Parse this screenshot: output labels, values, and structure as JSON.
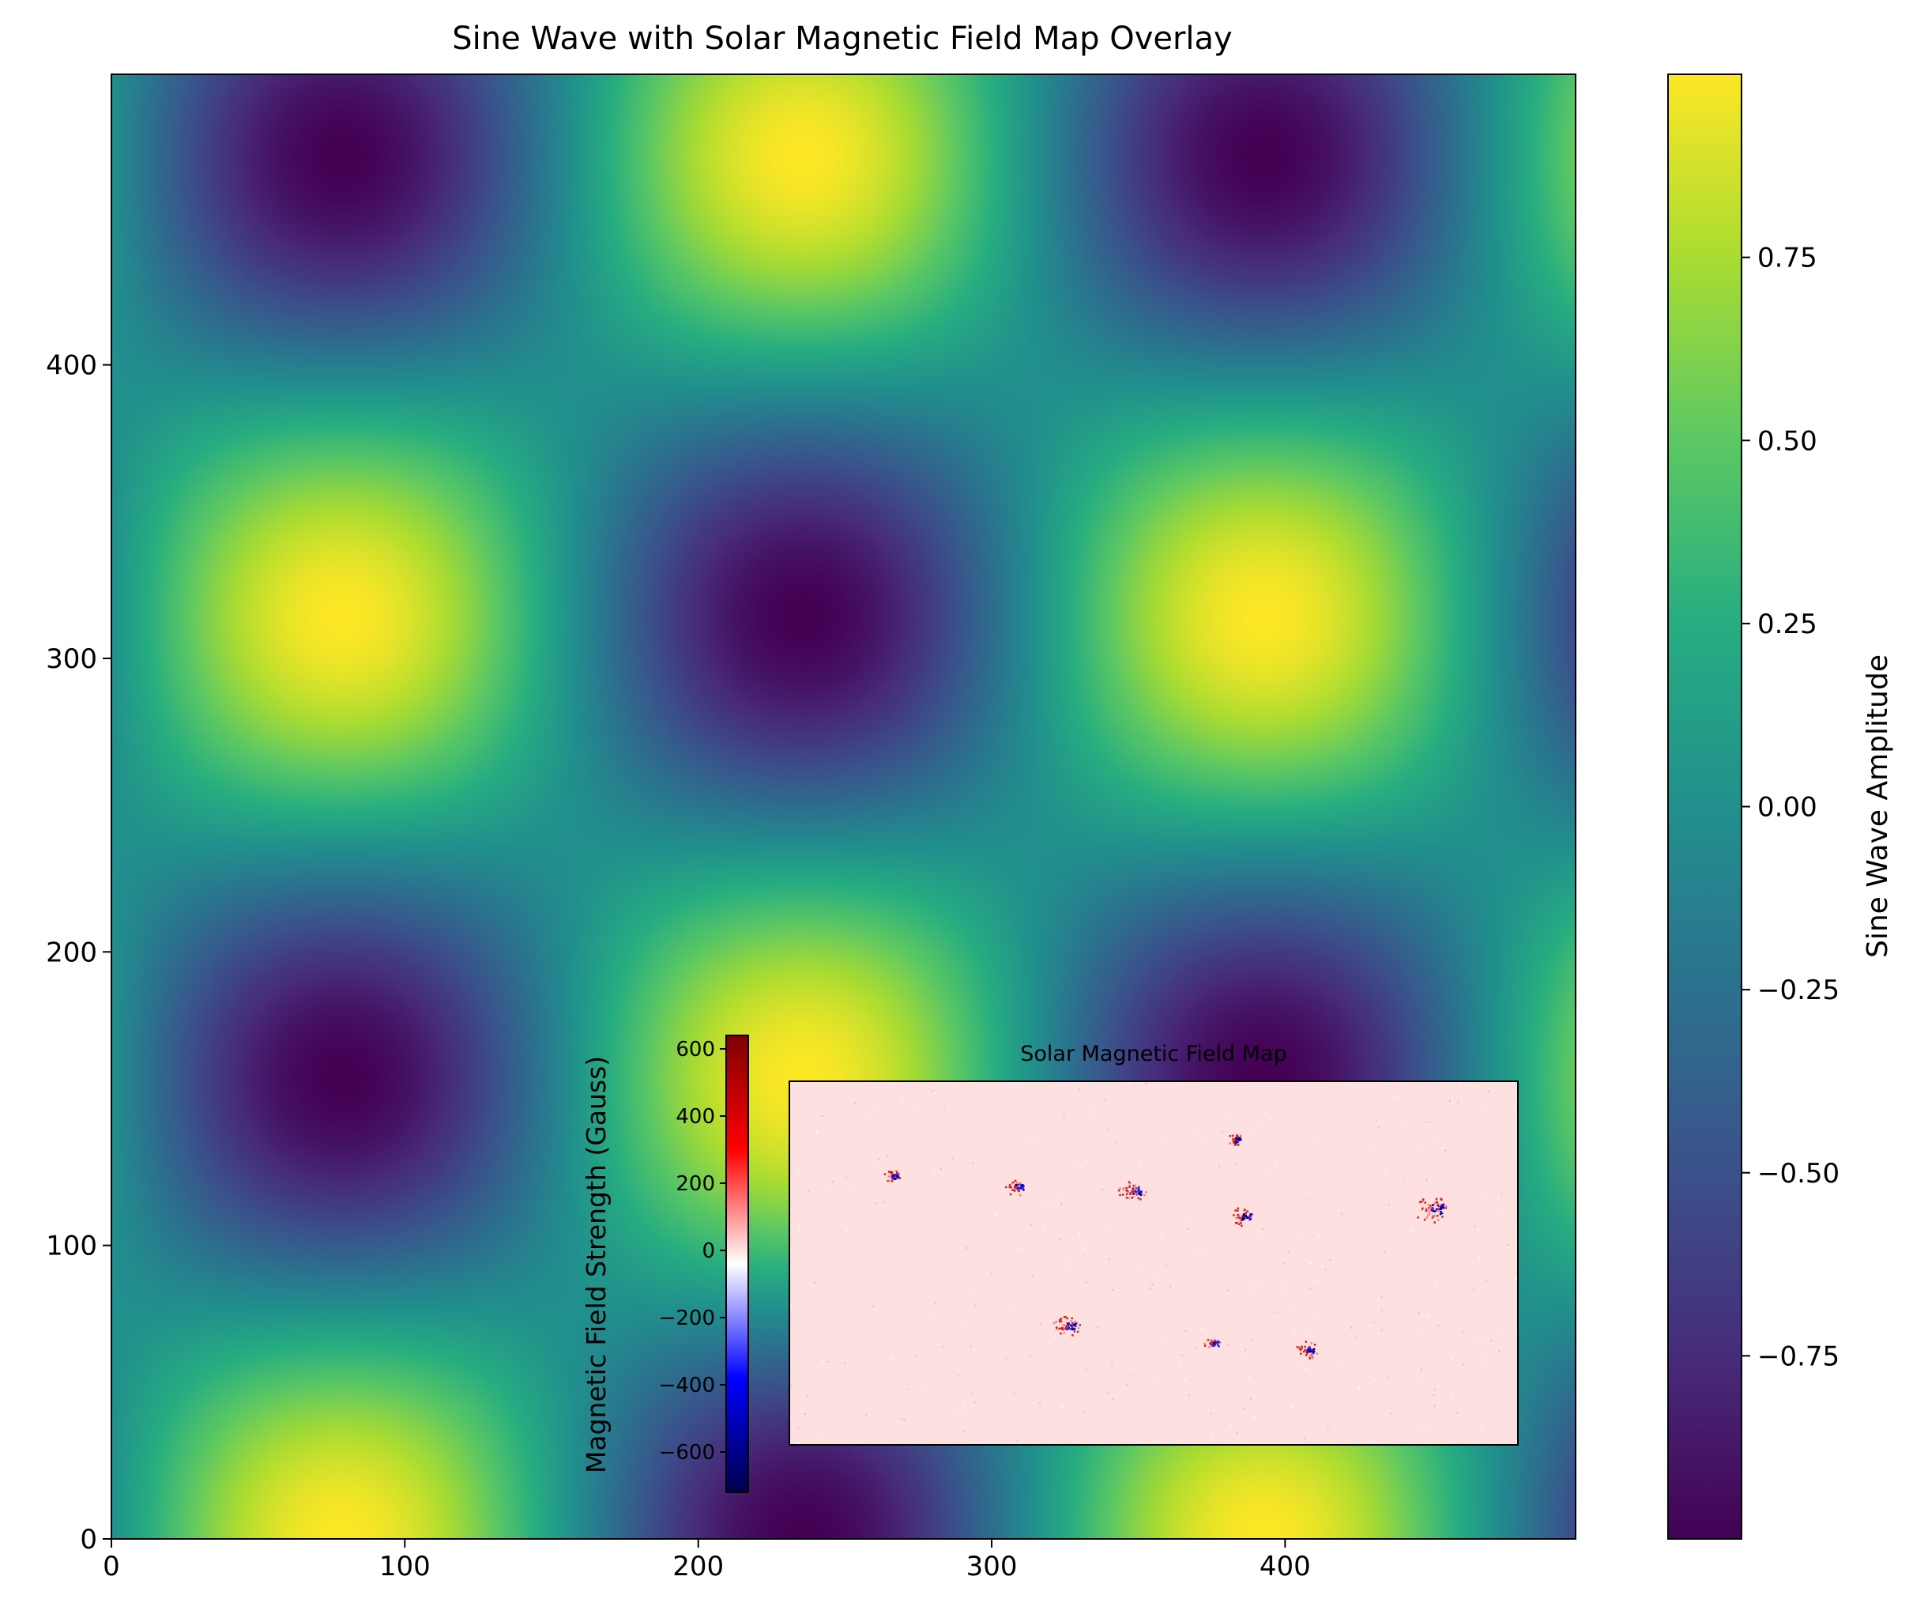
{
  "chart_data": [
    {
      "type": "heatmap",
      "title": "Sine Wave with Solar Magnetic Field Map Overlay",
      "function": "sin(x/50) * cos(y/50)",
      "xlim": [
        0,
        499
      ],
      "ylim": [
        0,
        499
      ],
      "x_ticks": [
        0,
        100,
        200,
        300,
        400
      ],
      "y_ticks": [
        0,
        100,
        200,
        300,
        400
      ],
      "colormap": "viridis",
      "colorbar": {
        "label": "Sine Wave Amplitude",
        "range": [
          -1,
          1
        ],
        "ticks": [
          -0.75,
          -0.5,
          -0.25,
          0.0,
          0.25,
          0.5,
          0.75
        ],
        "tick_labels": [
          "−0.75",
          "−0.50",
          "−0.25",
          "0.00",
          "0.25",
          "0.50",
          "0.75"
        ]
      }
    },
    {
      "type": "heatmap",
      "title": "Solar Magnetic Field Map",
      "colormap": "seismic",
      "background_color": "#fde0e0",
      "colorbar": {
        "label": "Magnetic Field Strength (Gauss)",
        "range": [
          -720,
          640
        ],
        "ticks": [
          -600,
          -400,
          -200,
          0,
          200,
          400,
          600
        ],
        "tick_labels": [
          "−600",
          "−400",
          "−200",
          "0",
          "200",
          "400",
          "600"
        ]
      },
      "active_regions": [
        {
          "x": 0.31,
          "y": 0.29,
          "polarity": "mixed",
          "size": 0.6
        },
        {
          "x": 0.14,
          "y": 0.26,
          "polarity": "mixed",
          "size": 0.5
        },
        {
          "x": 0.47,
          "y": 0.3,
          "polarity": "mixed",
          "size": 0.8
        },
        {
          "x": 0.62,
          "y": 0.37,
          "polarity": "mixed",
          "size": 0.7
        },
        {
          "x": 0.61,
          "y": 0.16,
          "polarity": "mixed",
          "size": 0.5
        },
        {
          "x": 0.88,
          "y": 0.35,
          "polarity": "mixed",
          "size": 1.0
        },
        {
          "x": 0.38,
          "y": 0.67,
          "polarity": "mixed",
          "size": 0.8
        },
        {
          "x": 0.58,
          "y": 0.72,
          "polarity": "mixed",
          "size": 0.5
        },
        {
          "x": 0.71,
          "y": 0.74,
          "polarity": "mixed",
          "size": 0.7
        }
      ]
    }
  ]
}
